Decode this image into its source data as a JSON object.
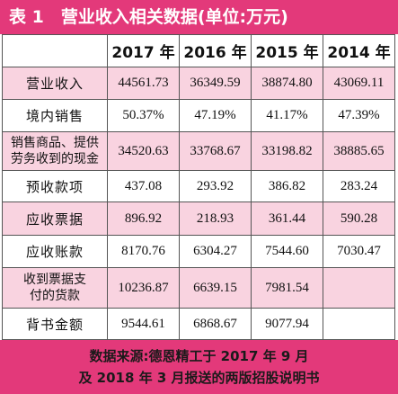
{
  "title": "表 1　营业收入相关数据(单位:万元)",
  "table": {
    "header": [
      "2017 年",
      "2016 年",
      "2015 年",
      "2014 年"
    ],
    "rows": [
      {
        "label": [
          "营业收入"
        ],
        "cells": [
          "44561.73",
          "36349.59",
          "38874.80",
          "43069.11"
        ]
      },
      {
        "label": [
          "境内销售"
        ],
        "cells": [
          "50.37%",
          "47.19%",
          "41.17%",
          "47.39%"
        ]
      },
      {
        "label": [
          "销售商品、提供",
          "劳务收到的现金"
        ],
        "cells": [
          "34520.63",
          "33768.67",
          "33198.82",
          "38885.65"
        ]
      },
      {
        "label": [
          "预收款项"
        ],
        "cells": [
          "437.08",
          "293.92",
          "386.82",
          "283.24"
        ]
      },
      {
        "label": [
          "应收票据"
        ],
        "cells": [
          "896.92",
          "218.93",
          "361.44",
          "590.28"
        ]
      },
      {
        "label": [
          "应收账款"
        ],
        "cells": [
          "8170.76",
          "6304.27",
          "7544.60",
          "7030.47"
        ]
      },
      {
        "label": [
          "收到票据支",
          "付的货款"
        ],
        "cells": [
          "10236.87",
          "6639.15",
          "7981.54",
          null
        ]
      },
      {
        "label": [
          "背书金额"
        ],
        "cells": [
          "9544.61",
          "6868.67",
          "9077.94",
          null
        ]
      }
    ]
  },
  "footer": [
    "数据来源:德恩精工于 2017 年 9 月",
    "及 2018 年 3 月报送的两版招股说明书"
  ]
}
